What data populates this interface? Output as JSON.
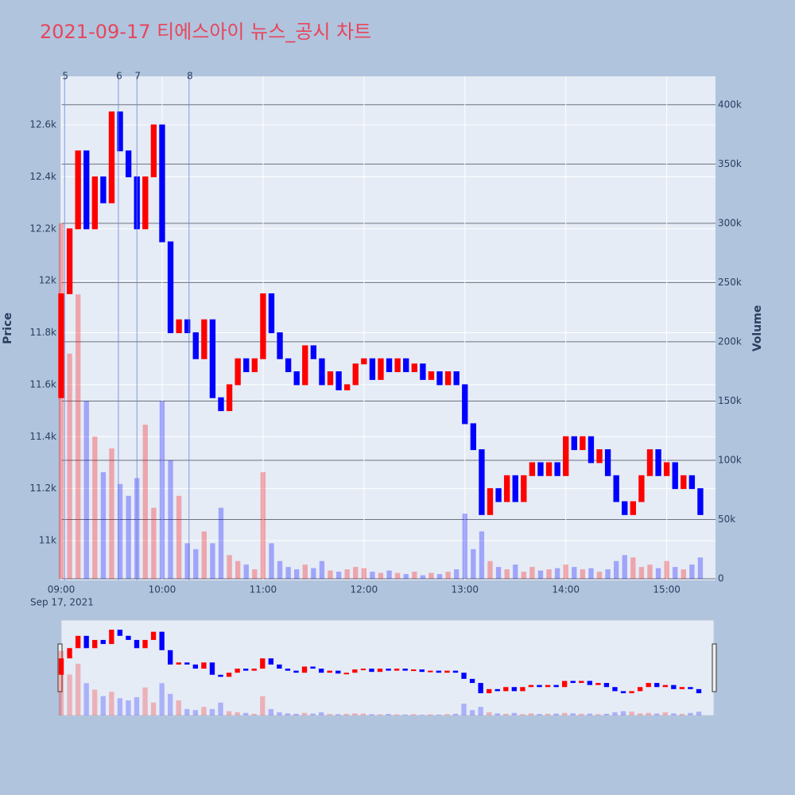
{
  "chart_data": {
    "type": "candlestick",
    "title": "2021-09-17 티에스아이 뉴스_공시 차트",
    "y_title": "Price",
    "y2_title": "Volume",
    "x_sublabel": "Sep 17, 2021",
    "increasing_color": "#ff0000",
    "decreasing_color": "#0000ff",
    "xlim": [
      "09:00",
      "15:29"
    ],
    "xticks": [
      "09:00",
      "10:00",
      "11:00",
      "12:00",
      "13:00",
      "14:00",
      "15:00"
    ],
    "ylim": [
      10847,
      12787
    ],
    "yticks": [
      {
        "value": 11000,
        "label": "11k"
      },
      {
        "value": 11200,
        "label": "11.2k"
      },
      {
        "value": 11400,
        "label": "11.4k"
      },
      {
        "value": 11600,
        "label": "11.6k"
      },
      {
        "value": 11800,
        "label": "11.8k"
      },
      {
        "value": 12000,
        "label": "12k"
      },
      {
        "value": 12200,
        "label": "12.2k"
      },
      {
        "value": 12400,
        "label": "12.4k"
      },
      {
        "value": 12600,
        "label": "12.6k"
      }
    ],
    "y2lim": [
      -1300,
      424000
    ],
    "y2ticks": [
      0,
      {
        "value": 50000,
        "label": "50k"
      },
      {
        "value": 100000,
        "label": "100k"
      },
      {
        "value": 150000,
        "label": "150k"
      },
      {
        "value": 200000,
        "label": "200k"
      },
      {
        "value": 250000,
        "label": "250k"
      },
      {
        "value": 300000,
        "label": "300k"
      },
      {
        "value": 350000,
        "label": "350k"
      },
      {
        "value": 400000,
        "label": "400k"
      }
    ],
    "annotations": [
      {
        "x": "09:02",
        "text": "5"
      },
      {
        "x": "09:34",
        "text": "6"
      },
      {
        "x": "09:45",
        "text": "7"
      },
      {
        "x": "10:16",
        "text": "8"
      }
    ],
    "x": [
      "09:00",
      "09:05",
      "09:10",
      "09:15",
      "09:20",
      "09:25",
      "09:30",
      "09:35",
      "09:40",
      "09:45",
      "09:50",
      "09:55",
      "10:00",
      "10:05",
      "10:10",
      "10:15",
      "10:20",
      "10:25",
      "10:30",
      "10:35",
      "10:40",
      "10:45",
      "10:50",
      "10:55",
      "11:00",
      "11:05",
      "11:10",
      "11:15",
      "11:20",
      "11:25",
      "11:30",
      "11:35",
      "11:40",
      "11:45",
      "11:50",
      "11:55",
      "12:00",
      "12:05",
      "12:10",
      "12:15",
      "12:20",
      "12:25",
      "12:30",
      "12:35",
      "12:40",
      "12:45",
      "12:50",
      "12:55",
      "13:00",
      "13:05",
      "13:10",
      "13:15",
      "13:20",
      "13:25",
      "13:30",
      "13:35",
      "13:40",
      "13:45",
      "13:50",
      "13:55",
      "14:00",
      "14:05",
      "14:10",
      "14:15",
      "14:20",
      "14:25",
      "14:30",
      "14:35",
      "14:40",
      "14:45",
      "14:50",
      "14:55",
      "15:00",
      "15:05",
      "15:10",
      "15:15",
      "15:20"
    ],
    "open": [
      11550,
      11950,
      12200,
      12500,
      12200,
      12400,
      12300,
      12650,
      12500,
      12400,
      12200,
      12400,
      12600,
      12150,
      11800,
      11850,
      11800,
      11700,
      11850,
      11550,
      11500,
      11600,
      11700,
      11650,
      11700,
      11950,
      11800,
      11700,
      11650,
      11600,
      11750,
      11700,
      11600,
      11650,
      11580,
      11600,
      11680,
      11700,
      11620,
      11700,
      11650,
      11700,
      11650,
      11680,
      11620,
      11650,
      11600,
      11650,
      11600,
      11450,
      11350,
      11100,
      11200,
      11150,
      11250,
      11150,
      11250,
      11300,
      11250,
      11300,
      11250,
      11400,
      11350,
      11400,
      11300,
      11350,
      11250,
      11150,
      11100,
      11150,
      11250,
      11350,
      11250,
      11300,
      11200,
      11250,
      11200
    ],
    "close": [
      11950,
      12200,
      12500,
      12200,
      12400,
      12300,
      12650,
      12500,
      12400,
      12200,
      12400,
      12600,
      12150,
      11800,
      11850,
      11800,
      11700,
      11850,
      11550,
      11500,
      11600,
      11700,
      11650,
      11700,
      11950,
      11800,
      11700,
      11650,
      11600,
      11750,
      11700,
      11600,
      11650,
      11580,
      11600,
      11680,
      11700,
      11620,
      11700,
      11650,
      11700,
      11650,
      11680,
      11620,
      11650,
      11600,
      11650,
      11600,
      11450,
      11350,
      11100,
      11200,
      11150,
      11250,
      11150,
      11250,
      11300,
      11250,
      11300,
      11250,
      11400,
      11350,
      11400,
      11300,
      11350,
      11250,
      11150,
      11100,
      11150,
      11250,
      11350,
      11250,
      11300,
      11200,
      11250,
      11200,
      11100
    ],
    "volume": [
      300000,
      190000,
      240000,
      150000,
      120000,
      90000,
      110000,
      80000,
      70000,
      85000,
      130000,
      60000,
      150000,
      100000,
      70000,
      30000,
      25000,
      40000,
      30000,
      60000,
      20000,
      15000,
      12000,
      8000,
      90000,
      30000,
      15000,
      10000,
      8000,
      12000,
      9000,
      15000,
      7000,
      6000,
      8000,
      10000,
      9000,
      6000,
      5000,
      7000,
      5000,
      4000,
      6000,
      3000,
      5000,
      4000,
      6000,
      8000,
      55000,
      25000,
      40000,
      15000,
      10000,
      8000,
      12000,
      6000,
      10000,
      7000,
      8000,
      9000,
      12000,
      10000,
      8000,
      9000,
      6000,
      8000,
      15000,
      20000,
      18000,
      10000,
      12000,
      9000,
      15000,
      10000,
      8000,
      12000,
      18000
    ]
  }
}
